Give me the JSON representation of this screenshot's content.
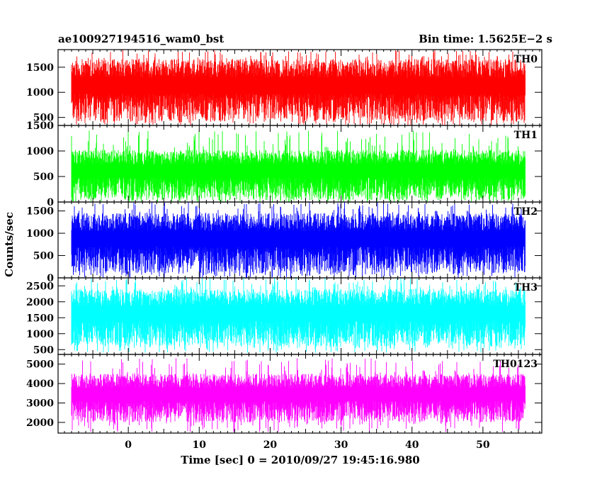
{
  "chart_data": {
    "type": "line",
    "title_left": "ae100927194516_wam0_bst",
    "title_right": "Bin time: 1.5625E−2 s",
    "xlabel": "Time [sec] 0 = 2010/09/27 19:45:16.980",
    "ylabel": "Counts/sec",
    "xlim": [
      -9.9,
      58.3
    ],
    "x_data_range": [
      -8.0,
      56.0
    ],
    "xticks": [
      0,
      10,
      20,
      30,
      40,
      50
    ],
    "grid": false,
    "panels": [
      {
        "name": "TH0",
        "color": "#ff0000",
        "ylim": [
          340,
          1850
        ],
        "yticks": [
          500,
          1000,
          1500
        ],
        "ytick_labels": [
          "500",
          "1000",
          "1500"
        ],
        "low": 420,
        "high": 1660,
        "peak": 1850,
        "trough": 340
      },
      {
        "name": "TH1",
        "color": "#00ff00",
        "ylim": [
          0,
          1500
        ],
        "yticks": [
          0,
          500,
          1000,
          1500
        ],
        "ytick_labels": [
          "0",
          "500",
          "1000",
          "1500"
        ],
        "low": 50,
        "high": 1020,
        "peak": 1400,
        "trough": 0
      },
      {
        "name": "TH2",
        "color": "#0000ff",
        "ylim": [
          0,
          1700
        ],
        "yticks": [
          0,
          500,
          1000,
          1500
        ],
        "ytick_labels": [
          "0",
          "500",
          "1000",
          "1500"
        ],
        "low": 100,
        "high": 1450,
        "peak": 1700,
        "trough": 0
      },
      {
        "name": "TH3",
        "color": "#00ffff",
        "ylim": [
          350,
          2750
        ],
        "yticks": [
          500,
          1000,
          1500,
          2000,
          2500
        ],
        "ytick_labels": [
          "500",
          "1000",
          "1500",
          "2000",
          "2500"
        ],
        "low": 600,
        "high": 2400,
        "peak": 2750,
        "trough": 400
      },
      {
        "name": "TH0123",
        "color": "#ff00ff",
        "ylim": [
          1450,
          5500
        ],
        "yticks": [
          2000,
          3000,
          4000,
          5000
        ],
        "ytick_labels": [
          "2000",
          "3000",
          "4000",
          "5000"
        ],
        "low": 2000,
        "high": 4500,
        "peak": 5300,
        "trough": 1500
      }
    ]
  }
}
